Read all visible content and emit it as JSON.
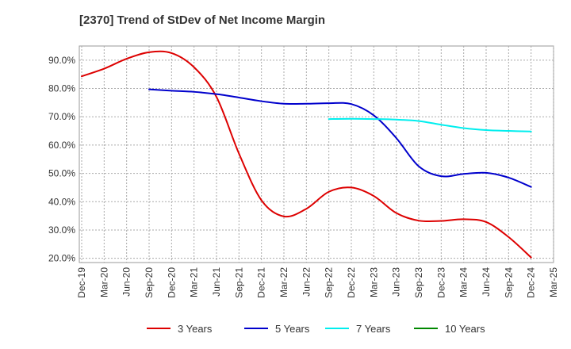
{
  "chart_data": {
    "type": "line",
    "title": "[2370]  Trend of StDev of Net Income Margin",
    "xlabel": "",
    "ylabel": "",
    "x_ticks": [
      "Dec-19",
      "Mar-20",
      "Jun-20",
      "Sep-20",
      "Dec-20",
      "Mar-21",
      "Jun-21",
      "Sep-21",
      "Dec-21",
      "Mar-22",
      "Jun-22",
      "Sep-22",
      "Dec-22",
      "Mar-23",
      "Jun-23",
      "Sep-23",
      "Dec-23",
      "Mar-24",
      "Jun-24",
      "Sep-24",
      "Dec-24",
      "Mar-25"
    ],
    "y_ticks": [
      "20.0%",
      "30.0%",
      "40.0%",
      "50.0%",
      "60.0%",
      "70.0%",
      "80.0%",
      "90.0%"
    ],
    "ylim": [
      18.5,
      95.0
    ],
    "grid": true,
    "legend_position": "bottom",
    "series": [
      {
        "name": "3 Years",
        "color": "#dd0000",
        "values": [
          84.3,
          87.0,
          90.5,
          92.8,
          92.5,
          87.5,
          77.0,
          57.0,
          40.5,
          34.8,
          37.5,
          43.5,
          45.0,
          42.0,
          36.0,
          33.3,
          33.2,
          33.8,
          32.8,
          27.5,
          20.3
        ]
      },
      {
        "name": "5 Years",
        "color": "#0000cc",
        "values": [
          null,
          null,
          null,
          79.7,
          79.2,
          78.8,
          78.0,
          76.8,
          75.5,
          74.6,
          74.6,
          74.8,
          74.5,
          70.5,
          62.5,
          52.5,
          49.0,
          49.8,
          50.2,
          48.5,
          45.2
        ]
      },
      {
        "name": "7 Years",
        "color": "#00eeee",
        "values": [
          null,
          null,
          null,
          null,
          null,
          null,
          null,
          null,
          null,
          null,
          null,
          69.2,
          69.3,
          69.2,
          69.0,
          68.5,
          67.2,
          66.0,
          65.3,
          65.0,
          64.8
        ]
      },
      {
        "name": "10 Years",
        "color": "#008800",
        "values": []
      }
    ]
  }
}
